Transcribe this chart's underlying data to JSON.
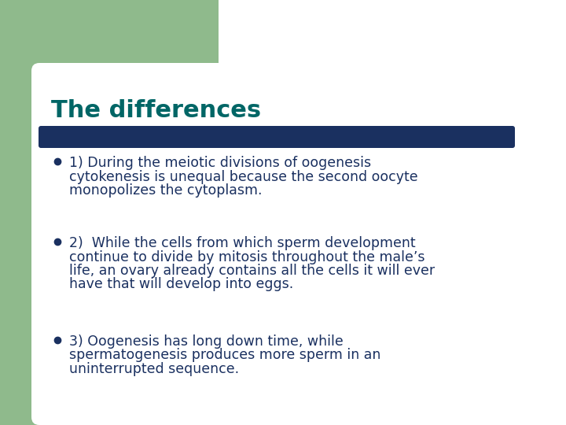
{
  "title": "The differences",
  "title_color": "#006666",
  "title_fontsize": 22,
  "background_color": "#ffffff",
  "left_bar_color": "#8fba8c",
  "divider_color": "#1a3060",
  "bullet_color": "#1a3060",
  "text_color": "#1a3060",
  "bullet_points": [
    "1) During the meiotic divisions of oogenesis\ncytokenesis is unequal because the second oocyte\nmonopolizes the cytoplasm.",
    "2)  While the cells from which sperm development\ncontinue to divide by mitosis throughout the male’s\nlife, an ovary already contains all the cells it will ever\nhave that will develop into eggs.",
    "3) Oogenesis has long down time, while\nspermatogenesis produces more sperm in an\nuninterrupted sequence."
  ],
  "text_fontsize": 12.5,
  "fig_width": 7.2,
  "fig_height": 5.4,
  "dpi": 100
}
